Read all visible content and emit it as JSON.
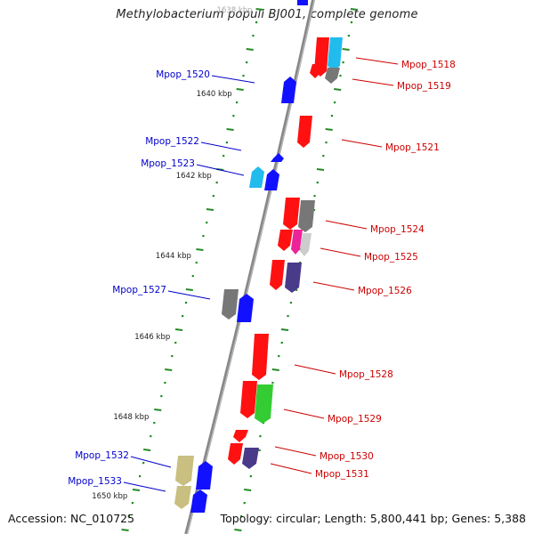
{
  "title": "Methylobacterium populi BJ001, complete genome",
  "footer": {
    "accession": "Accession: NC_010725",
    "summary": "Topology: circular; Length: 5,800,441 bp; Genes: 5,388"
  },
  "ruler_labels": [
    "1638 kbp",
    "1640 kbp",
    "1642 kbp",
    "1644 kbp",
    "1646 kbp",
    "1648 kbp",
    "1650 kbp"
  ],
  "colors": {
    "forward_label": "#cc0000",
    "reverse_label": "#0000cc",
    "axis": "#888888",
    "tick": "#228b22",
    "red": "#ff1111",
    "blue": "#1111ff",
    "cyan": "#22bbee",
    "gray": "#777777",
    "magenta": "#ee2299",
    "purple": "#4a3a8a",
    "green": "#33cc33",
    "khaki": "#c8bf80",
    "lightgray": "#cccccc"
  },
  "genes": [
    {
      "label": "Mpop_1518",
      "strand": "forward"
    },
    {
      "label": "Mpop_1519",
      "strand": "forward"
    },
    {
      "label": "Mpop_1520",
      "strand": "reverse"
    },
    {
      "label": "Mpop_1521",
      "strand": "forward"
    },
    {
      "label": "Mpop_1522",
      "strand": "reverse"
    },
    {
      "label": "Mpop_1523",
      "strand": "reverse"
    },
    {
      "label": "Mpop_1524",
      "strand": "forward"
    },
    {
      "label": "Mpop_1525",
      "strand": "forward"
    },
    {
      "label": "Mpop_1526",
      "strand": "forward"
    },
    {
      "label": "Mpop_1527",
      "strand": "reverse"
    },
    {
      "label": "Mpop_1528",
      "strand": "forward"
    },
    {
      "label": "Mpop_1529",
      "strand": "forward"
    },
    {
      "label": "Mpop_1530",
      "strand": "forward"
    },
    {
      "label": "Mpop_1531",
      "strand": "forward"
    },
    {
      "label": "Mpop_1532",
      "strand": "reverse"
    },
    {
      "label": "Mpop_1533",
      "strand": "reverse"
    }
  ]
}
